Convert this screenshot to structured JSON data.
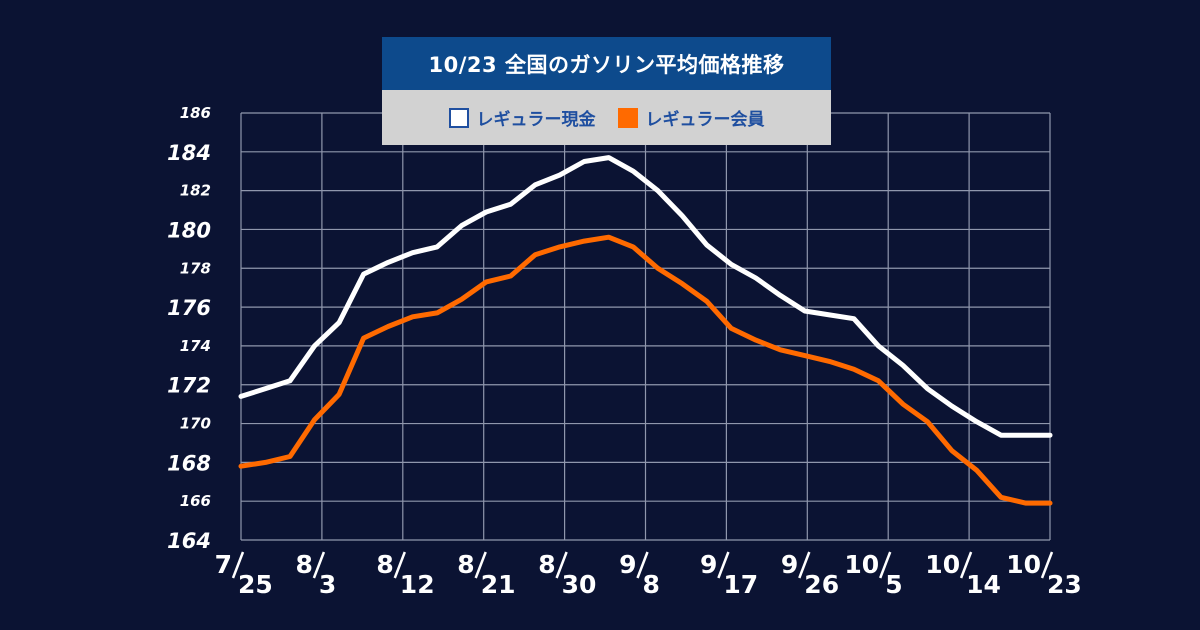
{
  "chart_data": {
    "type": "line",
    "title": "10/23 全国のガソリン平均価格推移",
    "xlabel": "",
    "ylabel": "",
    "ylim": [
      164,
      186
    ],
    "yticks": [
      164,
      166,
      168,
      170,
      172,
      174,
      176,
      178,
      180,
      182,
      184,
      186
    ],
    "grid": true,
    "legend_position": "top-center",
    "x_tick_labels": [
      {
        "month": "7",
        "day": "25"
      },
      {
        "month": "8",
        "day": "3"
      },
      {
        "month": "8",
        "day": "12"
      },
      {
        "month": "8",
        "day": "21"
      },
      {
        "month": "8",
        "day": "30"
      },
      {
        "month": "9",
        "day": "8"
      },
      {
        "month": "9",
        "day": "17"
      },
      {
        "month": "9",
        "day": "26"
      },
      {
        "month": "10",
        "day": "5"
      },
      {
        "month": "10",
        "day": "14"
      },
      {
        "month": "10",
        "day": "23"
      }
    ],
    "x": [
      "7/25",
      "7/28",
      "7/31",
      "8/3",
      "8/6",
      "8/9",
      "8/12",
      "8/15",
      "8/18",
      "8/21",
      "8/22",
      "8/24",
      "8/26",
      "8/28",
      "8/30",
      "9/2",
      "9/5",
      "9/8",
      "9/11",
      "9/14",
      "9/17",
      "9/20",
      "9/23",
      "9/26",
      "9/29",
      "10/2",
      "10/5",
      "10/8",
      "10/11",
      "10/14",
      "10/17",
      "10/20",
      "10/22",
      "10/23"
    ],
    "series": [
      {
        "name": "レギュラー現金",
        "color": "#ffffff",
        "values": [
          171.4,
          171.8,
          172.2,
          174.0,
          175.2,
          177.7,
          178.3,
          178.8,
          179.1,
          180.2,
          180.9,
          181.3,
          182.3,
          182.8,
          183.5,
          183.7,
          183.0,
          182.0,
          180.7,
          179.2,
          178.2,
          177.5,
          176.6,
          175.8,
          175.6,
          175.4,
          174.0,
          173.0,
          171.8,
          170.9,
          170.1,
          169.4,
          169.4,
          169.4
        ]
      },
      {
        "name": "レギュラー会員",
        "color": "#ff6a00",
        "values": [
          167.8,
          168.0,
          168.3,
          170.2,
          171.5,
          174.4,
          175.0,
          175.5,
          175.7,
          176.4,
          177.3,
          177.6,
          178.7,
          179.1,
          179.4,
          179.6,
          179.1,
          178.0,
          177.2,
          176.3,
          174.9,
          174.3,
          173.8,
          173.5,
          173.2,
          172.8,
          172.2,
          171.0,
          170.1,
          168.6,
          167.6,
          166.2,
          165.9,
          165.9
        ]
      }
    ]
  }
}
